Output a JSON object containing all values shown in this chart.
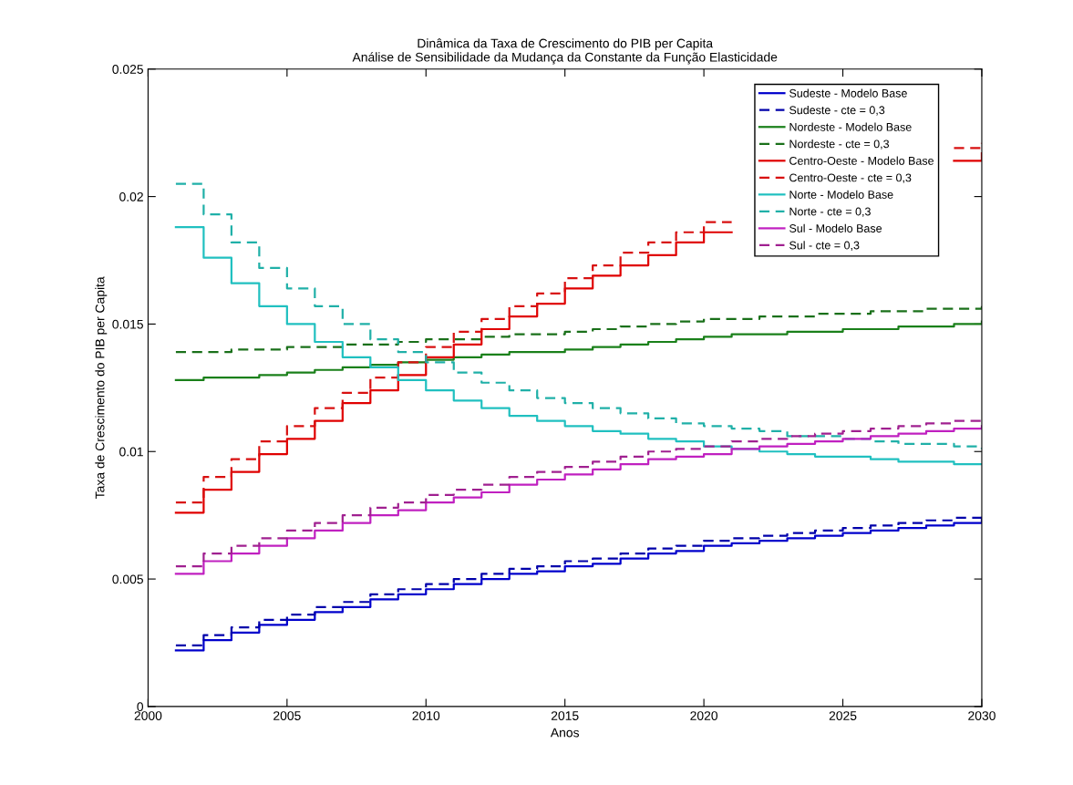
{
  "chart_data": {
    "type": "step",
    "title": "Dinâmica da Taxa de Crescimento do PIB per Capita",
    "subtitle": "Análise de Sensibilidade da Mudança da Constante da Função Elasticidade",
    "xlabel": "Anos",
    "ylabel": "Taxa de Crescimento do PIB per Capita",
    "x": [
      2001,
      2002,
      2003,
      2004,
      2005,
      2006,
      2007,
      2008,
      2009,
      2010,
      2011,
      2012,
      2013,
      2014,
      2015,
      2016,
      2017,
      2018,
      2019,
      2020,
      2021,
      2022,
      2023,
      2024,
      2025,
      2026,
      2027,
      2028,
      2029,
      2030
    ],
    "xlim": [
      2000,
      2030
    ],
    "xticks": [
      2000,
      2005,
      2010,
      2015,
      2020,
      2025,
      2030
    ],
    "ylim": [
      0,
      0.025
    ],
    "yticks": [
      0,
      0.005,
      0.01,
      0.015,
      0.02,
      0.025
    ],
    "grid": false,
    "legend": "top right",
    "series": [
      {
        "name": "Sudeste - Modelo Base",
        "color": "#0000cc",
        "line_style": "solid",
        "values": [
          0.0022,
          0.0026,
          0.0029,
          0.0032,
          0.0034,
          0.0037,
          0.0039,
          0.0042,
          0.0044,
          0.0046,
          0.0048,
          0.005,
          0.0052,
          0.0053,
          0.0055,
          0.0056,
          0.0058,
          0.006,
          0.0061,
          0.0063,
          0.0064,
          0.0065,
          0.0066,
          0.0067,
          0.0068,
          0.0069,
          0.007,
          0.0071,
          0.0072,
          0.0074
        ]
      },
      {
        "name": "Sudeste - cte = 0,3",
        "color": "#0000aa",
        "line_style": "dashed",
        "values": [
          0.0024,
          0.0028,
          0.0031,
          0.0034,
          0.0036,
          0.0039,
          0.0041,
          0.0044,
          0.0046,
          0.0048,
          0.005,
          0.0052,
          0.0054,
          0.0055,
          0.0057,
          0.0058,
          0.006,
          0.0062,
          0.0063,
          0.0065,
          0.0066,
          0.0067,
          0.0068,
          0.0069,
          0.007,
          0.0071,
          0.0072,
          0.0073,
          0.0074,
          0.0076
        ]
      },
      {
        "name": "Nordeste - Modelo Base",
        "color": "#1a801a",
        "line_style": "solid",
        "values": [
          0.0128,
          0.0129,
          0.0129,
          0.013,
          0.0131,
          0.0132,
          0.0133,
          0.0134,
          0.0135,
          0.0136,
          0.0137,
          0.0138,
          0.0139,
          0.0139,
          0.014,
          0.0141,
          0.0142,
          0.0143,
          0.0144,
          0.0145,
          0.0146,
          0.0146,
          0.0147,
          0.0147,
          0.0148,
          0.0148,
          0.0149,
          0.0149,
          0.015,
          0.0151
        ]
      },
      {
        "name": "Nordeste - cte = 0,3",
        "color": "#1a701a",
        "line_style": "dashed",
        "values": [
          0.0139,
          0.0139,
          0.014,
          0.014,
          0.0141,
          0.0141,
          0.0142,
          0.0142,
          0.0143,
          0.0144,
          0.0144,
          0.0145,
          0.0146,
          0.0146,
          0.0147,
          0.0148,
          0.0149,
          0.015,
          0.0151,
          0.0152,
          0.0152,
          0.0153,
          0.0153,
          0.0154,
          0.0154,
          0.0155,
          0.0155,
          0.0156,
          0.0156,
          0.0157
        ]
      },
      {
        "name": "Centro-Oeste - Modelo Base",
        "color": "#e00000",
        "line_style": "solid",
        "values": [
          0.0076,
          0.0085,
          0.0092,
          0.0099,
          0.0105,
          0.0112,
          0.0119,
          0.0124,
          0.013,
          0.0137,
          0.0142,
          0.0148,
          0.0153,
          0.0158,
          0.0164,
          0.0169,
          0.0173,
          0.0177,
          0.0182,
          0.0186,
          null,
          null,
          null,
          null,
          null,
          null,
          null,
          null,
          0.0214,
          0.0217
        ]
      },
      {
        "name": "Centro-Oeste - cte = 0,3",
        "color": "#d81010",
        "line_style": "dashed",
        "values": [
          0.008,
          0.009,
          0.0097,
          0.0104,
          0.011,
          0.0117,
          0.0123,
          0.0129,
          0.0135,
          0.0141,
          0.0147,
          0.0152,
          0.0157,
          0.0162,
          0.0168,
          0.0173,
          0.0178,
          0.0182,
          0.0186,
          0.019,
          null,
          null,
          null,
          null,
          null,
          null,
          null,
          null,
          0.0219,
          0.0221
        ]
      },
      {
        "name": "Norte - Modelo Base",
        "color": "#20c0c0",
        "line_style": "solid",
        "values": [
          0.0188,
          0.0176,
          0.0166,
          0.0157,
          0.015,
          0.0143,
          0.0137,
          0.0133,
          0.0128,
          0.0124,
          0.012,
          0.0117,
          0.0114,
          0.0112,
          0.011,
          0.0108,
          0.0107,
          0.0105,
          0.0104,
          0.0102,
          0.0101,
          0.01,
          0.0099,
          0.0098,
          0.0098,
          0.0097,
          0.0096,
          0.0096,
          0.0095,
          0.0095
        ]
      },
      {
        "name": "Norte - cte = 0,3",
        "color": "#20b0a8",
        "line_style": "dashed",
        "values": [
          0.0205,
          0.0193,
          0.0182,
          0.0172,
          0.0164,
          0.0157,
          0.015,
          0.0144,
          0.0139,
          0.0135,
          0.0131,
          0.0127,
          0.0124,
          0.0121,
          0.0119,
          0.0117,
          0.0115,
          0.0113,
          0.0111,
          0.011,
          0.0109,
          0.0108,
          0.0106,
          0.0106,
          0.0105,
          0.0104,
          0.0103,
          0.0103,
          0.0102,
          0.0101
        ]
      },
      {
        "name": "Sul - Modelo Base",
        "color": "#c020c0",
        "line_style": "solid",
        "values": [
          0.0052,
          0.0057,
          0.006,
          0.0063,
          0.0066,
          0.0069,
          0.0072,
          0.0075,
          0.0077,
          0.008,
          0.0082,
          0.0084,
          0.0087,
          0.0089,
          0.0091,
          0.0093,
          0.0095,
          0.0097,
          0.0098,
          0.0099,
          0.0101,
          0.0102,
          0.0103,
          0.0104,
          0.0105,
          0.0106,
          0.0107,
          0.0108,
          0.0109,
          0.011
        ]
      },
      {
        "name": "Sul - cte = 0,3",
        "color": "#a02090",
        "line_style": "dashed",
        "values": [
          0.0055,
          0.006,
          0.0063,
          0.0066,
          0.0069,
          0.0072,
          0.0075,
          0.0078,
          0.008,
          0.0083,
          0.0085,
          0.0087,
          0.009,
          0.0092,
          0.0094,
          0.0096,
          0.0098,
          0.01,
          0.0101,
          0.0102,
          0.0104,
          0.0105,
          0.0106,
          0.0107,
          0.0108,
          0.0109,
          0.011,
          0.0111,
          0.0112,
          0.0113
        ]
      }
    ]
  }
}
